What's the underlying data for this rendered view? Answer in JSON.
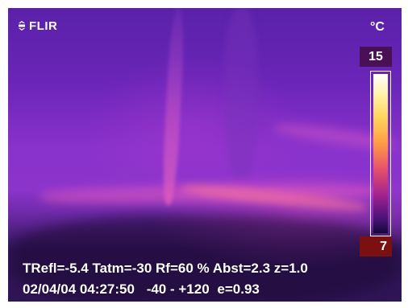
{
  "logo": {
    "text": "FLIR"
  },
  "scale": {
    "unit": "°C",
    "max": "15",
    "min": "7",
    "palette": [
      "#ffffff",
      "#fff2a0",
      "#ffd35a",
      "#ff9a45",
      "#e5506b",
      "#a2238f",
      "#4d137a",
      "#140a3a"
    ]
  },
  "info": {
    "line1": "TRefl=-5.4 Tatm=-30 Rf=60 % Abst=2.3 z=1.0",
    "datetime": "02/04/04 04:27:50",
    "range": "-40 -  +120",
    "emissivity": "e=0.93"
  },
  "colors": {
    "scene_dark": "#2e1555",
    "scene_mid": "#8a32cc",
    "scale_max_box": "#4a1055",
    "scale_min_box": "#7a1010"
  }
}
